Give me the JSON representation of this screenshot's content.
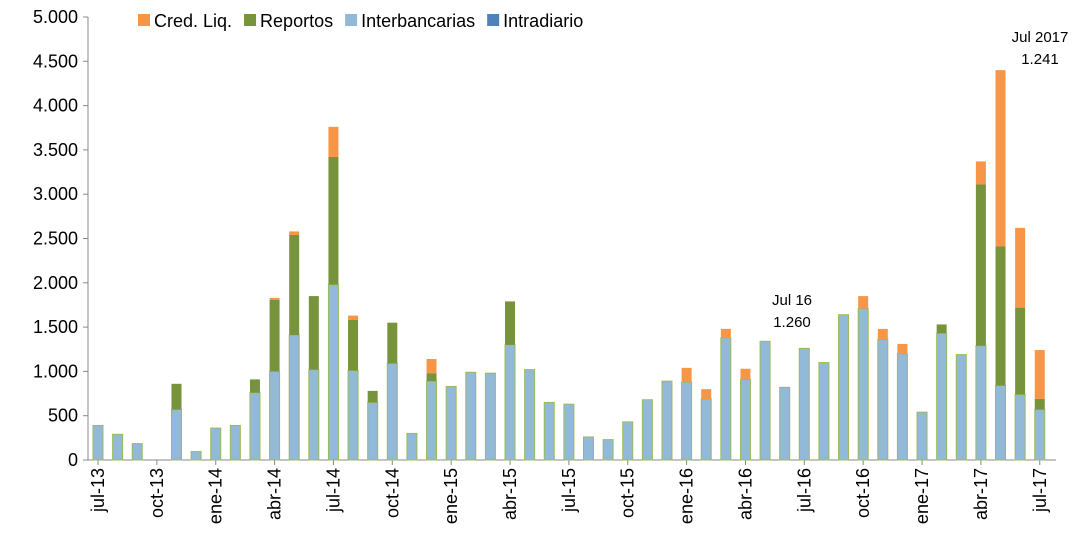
{
  "chart_data": {
    "type": "stacked_bar",
    "categories": [
      "jul-13",
      null,
      null,
      "oct-13",
      null,
      null,
      "ene-14",
      null,
      null,
      "abr-14",
      null,
      null,
      "jul-14",
      null,
      null,
      "oct-14",
      null,
      null,
      "ene-15",
      null,
      null,
      "abr-15",
      null,
      null,
      "jul-15",
      null,
      null,
      "oct-15",
      null,
      null,
      "ene-16",
      null,
      null,
      "abr-16",
      null,
      null,
      "jul-16",
      null,
      null,
      "oct-16",
      null,
      null,
      "ene-17",
      null,
      null,
      "abr-17",
      null,
      null,
      "jul-17"
    ],
    "series": [
      {
        "name": "Cred. Liq.",
        "color": "#f79646",
        "values": [
          0,
          0,
          0,
          0,
          0,
          0,
          0,
          0,
          0,
          20,
          40,
          0,
          340,
          50,
          0,
          0,
          0,
          160,
          0,
          0,
          0,
          0,
          0,
          0,
          0,
          0,
          0,
          0,
          0,
          0,
          160,
          110,
          100,
          120,
          0,
          0,
          0,
          0,
          0,
          140,
          120,
          110,
          0,
          0,
          0,
          260,
          1990,
          900,
          551
        ]
      },
      {
        "name": "Reportos",
        "color": "#77933c",
        "values": [
          0,
          0,
          0,
          0,
          290,
          0,
          0,
          0,
          150,
          810,
          1130,
          830,
          1440,
          570,
          130,
          460,
          0,
          90,
          0,
          0,
          0,
          490,
          0,
          0,
          0,
          0,
          0,
          0,
          0,
          0,
          0,
          0,
          0,
          0,
          0,
          0,
          0,
          0,
          0,
          0,
          0,
          0,
          0,
          100,
          0,
          1820,
          1570,
          980,
          120
        ]
      },
      {
        "name": "Interbancarias",
        "color": "#93b9d8",
        "values": [
          390,
          290,
          185,
          0,
          570,
          95,
          360,
          390,
          760,
          1000,
          1410,
          1020,
          1980,
          1010,
          650,
          1090,
          300,
          890,
          830,
          990,
          980,
          1300,
          1020,
          650,
          630,
          260,
          230,
          430,
          680,
          890,
          880,
          690,
          1380,
          910,
          1340,
          820,
          1260,
          1100,
          1640,
          1710,
          1360,
          1200,
          540,
          1430,
          1190,
          1290,
          840,
          740,
          570
        ]
      },
      {
        "name": "Intradiario",
        "color": "#4f81bd",
        "values": [
          0,
          0,
          0,
          0,
          0,
          0,
          0,
          0,
          0,
          0,
          0,
          0,
          0,
          0,
          0,
          0,
          0,
          0,
          0,
          0,
          0,
          0,
          0,
          0,
          0,
          0,
          0,
          0,
          0,
          0,
          0,
          0,
          0,
          0,
          0,
          0,
          0,
          0,
          0,
          0,
          0,
          0,
          0,
          0,
          0,
          0,
          0,
          0,
          0
        ]
      }
    ],
    "annotations": [
      {
        "lines": [
          "Jul 16",
          "1.260"
        ]
      },
      {
        "lines": [
          "Jul 2017",
          "1.241"
        ]
      }
    ],
    "ylim": [
      0,
      5000
    ],
    "yticks": [
      0,
      {
        "value": 500,
        "label": "500"
      },
      {
        "value": 1000,
        "label": "1.000"
      },
      {
        "value": 1500,
        "label": "1.500"
      },
      {
        "value": 2000,
        "label": "2.000"
      },
      {
        "value": 2500,
        "label": "2.500"
      },
      {
        "value": 3000,
        "label": "3.000"
      },
      {
        "value": 3500,
        "label": "3.500"
      },
      {
        "value": 4000,
        "label": "4.000"
      },
      {
        "value": 4500,
        "label": "4.500"
      },
      {
        "value": 5000,
        "label": "5.000"
      }
    ],
    "legend": "top-left",
    "grid": false
  }
}
